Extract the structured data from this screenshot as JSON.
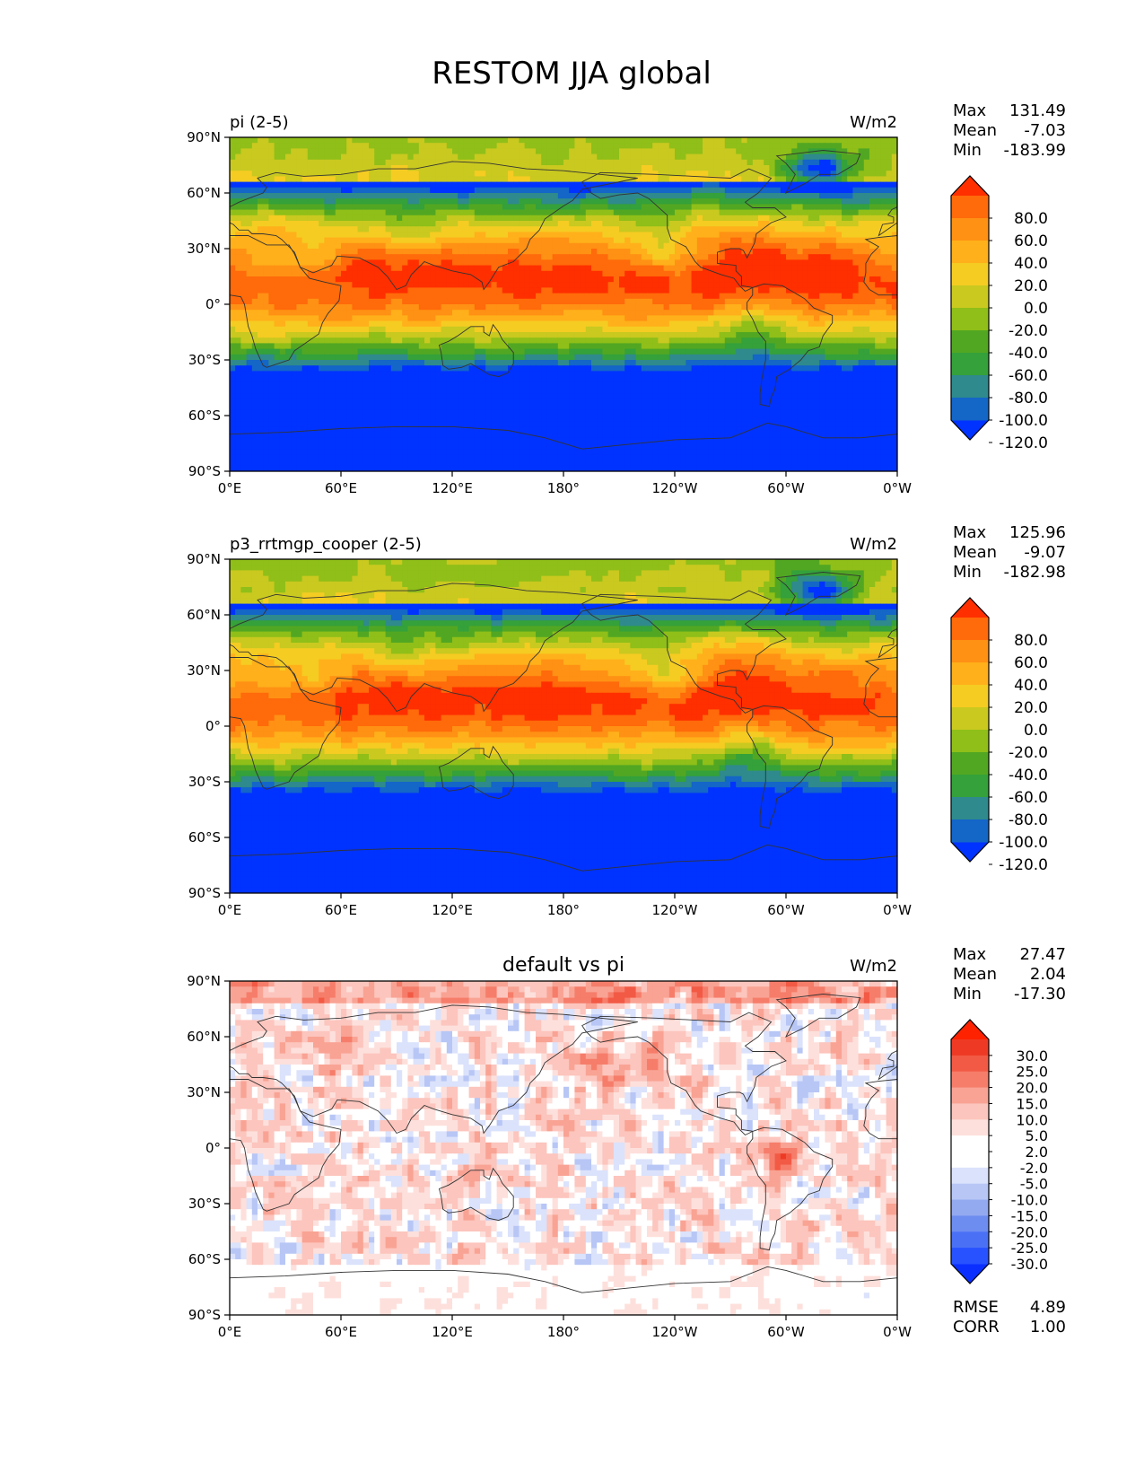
{
  "figure_title": "RESTOM JJA global",
  "colors": {
    "test_levels": [
      "#0033ff",
      "#1466c7",
      "#2e8a8c",
      "#34a13a",
      "#52a722",
      "#8fbf18",
      "#c9c920",
      "#f5cc22",
      "#ffb01a",
      "#ff9114",
      "#ff6a0a",
      "#ff2f00"
    ],
    "diff_levels": [
      "#0b2fff",
      "#2852ff",
      "#4a70f5",
      "#6d8df0",
      "#93a9f0",
      "#b7c6f5",
      "#dbe2fb",
      "#ffffff",
      "#ffffff",
      "#fde0dc",
      "#fcc5bd",
      "#f9a394",
      "#f67d6a",
      "#f25a45",
      "#ee3a25",
      "#ff2200"
    ],
    "land_outline": "#333333"
  },
  "panels": [
    {
      "id": "test",
      "left_title": "pi (2-5)",
      "center_title": "",
      "units": "W/m2",
      "stats": [
        {
          "label": "Max",
          "value": "131.49"
        },
        {
          "label": "Mean",
          "value": "-7.03"
        },
        {
          "label": "Min",
          "value": "-183.99"
        }
      ],
      "colorbar_labels": [
        "80.0",
        "60.0",
        "40.0",
        "20.0",
        "0.0",
        "-20.0",
        "-40.0",
        "-60.0",
        "-80.0",
        "-100.0",
        "-120.0"
      ],
      "metrics": []
    },
    {
      "id": "reference",
      "left_title": "p3_rrtmgp_cooper (2-5)",
      "center_title": "",
      "units": "W/m2",
      "stats": [
        {
          "label": "Max",
          "value": "125.96"
        },
        {
          "label": "Mean",
          "value": "-9.07"
        },
        {
          "label": "Min",
          "value": "-182.98"
        }
      ],
      "colorbar_labels": [
        "80.0",
        "60.0",
        "40.0",
        "20.0",
        "0.0",
        "-20.0",
        "-40.0",
        "-60.0",
        "-80.0",
        "-100.0",
        "-120.0"
      ],
      "metrics": []
    },
    {
      "id": "difference",
      "left_title": "",
      "center_title": "default vs pi",
      "units": "W/m2",
      "stats": [
        {
          "label": "Max",
          "value": "27.47"
        },
        {
          "label": "Mean",
          "value": "2.04"
        },
        {
          "label": "Min",
          "value": "-17.30"
        }
      ],
      "colorbar_labels": [
        "30.0",
        "25.0",
        "20.0",
        "15.0",
        "10.0",
        "5.0",
        "2.0",
        "-2.0",
        "-5.0",
        "-10.0",
        "-15.0",
        "-20.0",
        "-25.0",
        "-30.0"
      ],
      "metrics": [
        {
          "label": "RMSE",
          "value": "4.89"
        },
        {
          "label": "CORR",
          "value": "1.00"
        }
      ]
    }
  ],
  "chart_data": [
    {
      "type": "heatmap",
      "title": "pi (2-5)",
      "units": "W/m2",
      "x_ticks": [
        "0°E",
        "60°E",
        "120°E",
        "180°",
        "120°W",
        "60°W",
        "0°W"
      ],
      "y_ticks": [
        "90°N",
        "60°N",
        "30°N",
        "0°",
        "30°S",
        "60°S",
        "90°S"
      ],
      "xlim": [
        0,
        360
      ],
      "ylim": [
        -90,
        90
      ],
      "colorbar_levels": [
        -120,
        -100,
        -80,
        -60,
        -40,
        -20,
        0,
        20,
        40,
        60,
        80
      ],
      "stats": {
        "max": 131.49,
        "mean": -7.03,
        "min": -183.99
      }
    },
    {
      "type": "heatmap",
      "title": "p3_rrtmgp_cooper (2-5)",
      "units": "W/m2",
      "x_ticks": [
        "0°E",
        "60°E",
        "120°E",
        "180°",
        "120°W",
        "60°W",
        "0°W"
      ],
      "y_ticks": [
        "90°N",
        "60°N",
        "30°N",
        "0°",
        "30°S",
        "60°S",
        "90°S"
      ],
      "xlim": [
        0,
        360
      ],
      "ylim": [
        -90,
        90
      ],
      "colorbar_levels": [
        -120,
        -100,
        -80,
        -60,
        -40,
        -20,
        0,
        20,
        40,
        60,
        80
      ],
      "stats": {
        "max": 125.96,
        "mean": -9.07,
        "min": -182.98
      }
    },
    {
      "type": "heatmap",
      "title": "default vs pi",
      "units": "W/m2",
      "x_ticks": [
        "0°E",
        "60°E",
        "120°E",
        "180°",
        "120°W",
        "60°W",
        "0°W"
      ],
      "y_ticks": [
        "90°N",
        "60°N",
        "30°N",
        "0°",
        "30°S",
        "60°S",
        "90°S"
      ],
      "xlim": [
        0,
        360
      ],
      "ylim": [
        -90,
        90
      ],
      "colorbar_levels": [
        -30,
        -25,
        -20,
        -15,
        -10,
        -5,
        -2,
        2,
        5,
        10,
        15,
        20,
        25,
        30
      ],
      "stats": {
        "max": 27.47,
        "mean": 2.04,
        "min": -17.3,
        "rmse": 4.89,
        "corr": 1.0
      }
    }
  ]
}
